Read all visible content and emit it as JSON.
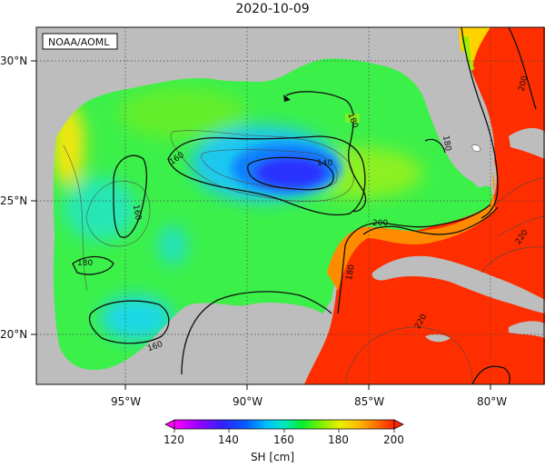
{
  "title": "2020-10-09",
  "credit": "NOAA/AOML",
  "lon_labels": [
    "95°W",
    "90°W",
    "85°W",
    "80°W"
  ],
  "lat_labels": [
    "30°N",
    "25°N",
    "20°N"
  ],
  "colorbar": {
    "label": "SH [cm]",
    "ticks": [
      "120",
      "140",
      "160",
      "180",
      "200"
    ],
    "colors": [
      "#ff00ff",
      "#a000ff",
      "#3020ff",
      "#0050ff",
      "#00a0ff",
      "#00e0ff",
      "#00e8a0",
      "#00f020",
      "#80f000",
      "#e0f000",
      "#ffd000",
      "#ff9000",
      "#ff3000"
    ]
  },
  "contour_labels": [
    "180",
    "160",
    "160",
    "180",
    "140",
    "160",
    "180",
    "200",
    "180",
    "220",
    "220",
    "200"
  ]
}
